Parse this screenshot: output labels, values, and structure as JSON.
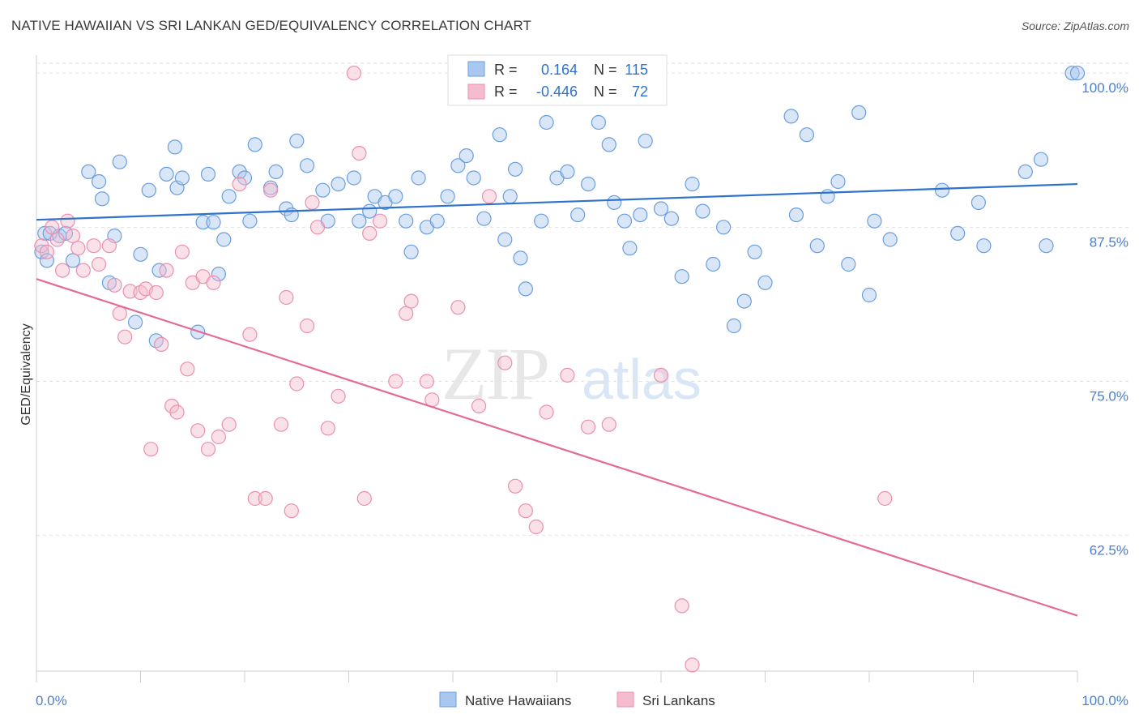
{
  "header": {
    "title": "NATIVE HAWAIIAN VS SRI LANKAN GED/EQUIVALENCY CORRELATION CHART",
    "source": "Source: ZipAtlas.com"
  },
  "watermark": {
    "zip": "ZIP",
    "atlas": "atlas"
  },
  "legend_top": {
    "rows": [
      {
        "r_label": "R =",
        "r_value": "0.164",
        "n_label": "N =",
        "n_value": "115"
      },
      {
        "r_label": "R =",
        "r_value": "-0.446",
        "n_label": "N =",
        "n_value": "72"
      }
    ]
  },
  "legend_bottom": {
    "items": [
      "Native Hawaiians",
      "Sri Lankans"
    ]
  },
  "colors": {
    "blue_fill": "#a9c8f0",
    "blue_stroke": "#6a9ee0",
    "blue_line": "#2f72cc",
    "pink_fill": "#f5bccd",
    "pink_stroke": "#eb8fb0",
    "pink_line": "#e36b98",
    "tick_text": "#4a7fd0",
    "grid": "#e3e3e3"
  },
  "chart_data": {
    "type": "scatter",
    "title": "NATIVE HAWAIIAN VS SRI LANKAN GED/EQUIVALENCY CORRELATION CHART",
    "xlabel": "",
    "ylabel": "GED/Equivalency",
    "xlim": [
      0,
      100
    ],
    "ylim": [
      51.5,
      100.8
    ],
    "x_tick_labels": [
      "0.0%",
      "100.0%"
    ],
    "y_ticks": [
      {
        "value": 100.0,
        "label": "100.0%"
      },
      {
        "value": 87.5,
        "label": "87.5%"
      },
      {
        "value": 75.0,
        "label": "75.0%"
      },
      {
        "value": 62.5,
        "label": "62.5%"
      }
    ],
    "grid": "horizontal dashed",
    "series": [
      {
        "name": "Native Hawaiians",
        "trend": {
          "x": [
            0,
            100
          ],
          "y": [
            88.1,
            91.0
          ]
        },
        "points": [
          [
            0.5,
            85.5
          ],
          [
            0.8,
            87.0
          ],
          [
            1.0,
            84.8
          ],
          [
            1.3,
            87.0
          ],
          [
            2.2,
            86.8
          ],
          [
            2.8,
            87.0
          ],
          [
            3.5,
            84.8
          ],
          [
            5.0,
            92.0
          ],
          [
            6.0,
            91.2
          ],
          [
            6.3,
            89.8
          ],
          [
            7.0,
            83.0
          ],
          [
            7.5,
            86.8
          ],
          [
            8.0,
            92.8
          ],
          [
            9.5,
            79.8
          ],
          [
            10.0,
            85.3
          ],
          [
            10.8,
            90.5
          ],
          [
            11.5,
            78.3
          ],
          [
            11.8,
            84.0
          ],
          [
            12.5,
            91.8
          ],
          [
            13.3,
            94.0
          ],
          [
            13.5,
            90.7
          ],
          [
            14.0,
            91.5
          ],
          [
            15.5,
            79.0
          ],
          [
            16.0,
            87.9
          ],
          [
            16.5,
            91.8
          ],
          [
            17.0,
            87.9
          ],
          [
            17.5,
            83.7
          ],
          [
            18.0,
            86.5
          ],
          [
            18.5,
            90.0
          ],
          [
            19.5,
            92.0
          ],
          [
            20.0,
            91.5
          ],
          [
            20.5,
            88.0
          ],
          [
            21.0,
            94.2
          ],
          [
            22.5,
            90.7
          ],
          [
            23.0,
            92.0
          ],
          [
            24.0,
            89.0
          ],
          [
            24.5,
            88.5
          ],
          [
            25.0,
            94.5
          ],
          [
            26.0,
            92.5
          ],
          [
            27.5,
            90.5
          ],
          [
            28.0,
            88.0
          ],
          [
            29.0,
            91.0
          ],
          [
            30.5,
            91.5
          ],
          [
            31.0,
            88.0
          ],
          [
            32.0,
            88.8
          ],
          [
            32.5,
            90.0
          ],
          [
            33.5,
            89.5
          ],
          [
            34.5,
            90.0
          ],
          [
            35.5,
            88.0
          ],
          [
            36.0,
            85.5
          ],
          [
            36.7,
            91.5
          ],
          [
            37.5,
            87.5
          ],
          [
            38.5,
            88.0
          ],
          [
            39.5,
            90.0
          ],
          [
            40.5,
            92.5
          ],
          [
            41.3,
            93.3
          ],
          [
            42.0,
            91.5
          ],
          [
            43.0,
            88.2
          ],
          [
            44.5,
            95.0
          ],
          [
            45.0,
            86.5
          ],
          [
            45.5,
            90.0
          ],
          [
            46.0,
            92.2
          ],
          [
            46.5,
            85.0
          ],
          [
            47.0,
            82.5
          ],
          [
            48.5,
            88.0
          ],
          [
            49.0,
            96.0
          ],
          [
            50.0,
            91.5
          ],
          [
            51.0,
            92.0
          ],
          [
            52.0,
            88.5
          ],
          [
            53.0,
            91.0
          ],
          [
            54.0,
            96.0
          ],
          [
            55.0,
            94.2
          ],
          [
            55.5,
            89.5
          ],
          [
            56.5,
            88.0
          ],
          [
            57.0,
            85.8
          ],
          [
            58.0,
            88.5
          ],
          [
            58.5,
            94.5
          ],
          [
            60.0,
            89.0
          ],
          [
            61.0,
            88.2
          ],
          [
            62.0,
            83.5
          ],
          [
            63.0,
            91.0
          ],
          [
            64.0,
            88.8
          ],
          [
            65.0,
            84.5
          ],
          [
            66.0,
            87.5
          ],
          [
            67.0,
            79.5
          ],
          [
            68.0,
            81.5
          ],
          [
            69.0,
            85.5
          ],
          [
            70.0,
            83.0
          ],
          [
            72.5,
            96.5
          ],
          [
            73.0,
            88.5
          ],
          [
            74.0,
            95.0
          ],
          [
            75.0,
            86.0
          ],
          [
            76.0,
            90.0
          ],
          [
            77.0,
            91.2
          ],
          [
            78.0,
            84.5
          ],
          [
            79.0,
            96.8
          ],
          [
            80.0,
            82.0
          ],
          [
            80.5,
            88.0
          ],
          [
            82.0,
            86.5
          ],
          [
            87.0,
            90.5
          ],
          [
            88.5,
            87.0
          ],
          [
            90.5,
            89.5
          ],
          [
            91.0,
            86.0
          ],
          [
            95.0,
            92.0
          ],
          [
            96.5,
            93.0
          ],
          [
            97.0,
            86.0
          ],
          [
            99.5,
            100.0
          ],
          [
            100.0,
            100.0
          ]
        ]
      },
      {
        "name": "Sri Lankans",
        "trend": {
          "x": [
            0,
            100
          ],
          "y": [
            83.3,
            56.0
          ]
        },
        "points": [
          [
            0.5,
            86.0
          ],
          [
            1.0,
            85.5
          ],
          [
            1.5,
            87.5
          ],
          [
            2.0,
            86.5
          ],
          [
            2.5,
            84.0
          ],
          [
            3.0,
            88.0
          ],
          [
            3.5,
            86.8
          ],
          [
            4.0,
            85.8
          ],
          [
            4.5,
            84.0
          ],
          [
            5.5,
            86.0
          ],
          [
            6.0,
            84.5
          ],
          [
            7.0,
            86.0
          ],
          [
            7.5,
            82.8
          ],
          [
            8.0,
            80.5
          ],
          [
            8.5,
            78.6
          ],
          [
            9.0,
            82.3
          ],
          [
            10.0,
            82.2
          ],
          [
            10.5,
            82.5
          ],
          [
            11.0,
            69.5
          ],
          [
            11.5,
            82.2
          ],
          [
            12.0,
            78.0
          ],
          [
            12.5,
            84.0
          ],
          [
            13.0,
            73.0
          ],
          [
            13.5,
            72.5
          ],
          [
            14.0,
            85.5
          ],
          [
            14.5,
            76.0
          ],
          [
            15.0,
            83.0
          ],
          [
            15.5,
            71.0
          ],
          [
            16.0,
            83.5
          ],
          [
            16.5,
            69.5
          ],
          [
            17.0,
            83.0
          ],
          [
            17.5,
            70.5
          ],
          [
            18.5,
            71.5
          ],
          [
            19.5,
            91.0
          ],
          [
            20.5,
            78.8
          ],
          [
            21.0,
            65.5
          ],
          [
            22.0,
            65.5
          ],
          [
            22.5,
            90.5
          ],
          [
            23.5,
            71.5
          ],
          [
            24.0,
            81.8
          ],
          [
            24.5,
            64.5
          ],
          [
            25.0,
            74.8
          ],
          [
            26.0,
            79.5
          ],
          [
            26.5,
            89.5
          ],
          [
            27.0,
            87.5
          ],
          [
            28.0,
            71.2
          ],
          [
            29.0,
            73.8
          ],
          [
            30.5,
            100.0
          ],
          [
            31.0,
            93.5
          ],
          [
            31.5,
            65.5
          ],
          [
            32.0,
            87.0
          ],
          [
            33.0,
            88.0
          ],
          [
            34.5,
            75.0
          ],
          [
            35.5,
            80.5
          ],
          [
            36.0,
            81.5
          ],
          [
            37.5,
            75.0
          ],
          [
            38.0,
            73.5
          ],
          [
            40.5,
            81.0
          ],
          [
            42.5,
            73.0
          ],
          [
            43.5,
            90.0
          ],
          [
            45.0,
            76.5
          ],
          [
            46.0,
            66.5
          ],
          [
            47.0,
            64.5
          ],
          [
            48.0,
            63.2
          ],
          [
            49.0,
            72.5
          ],
          [
            51.0,
            75.5
          ],
          [
            53.0,
            71.3
          ],
          [
            55.0,
            71.5
          ],
          [
            60.0,
            75.5
          ],
          [
            62.0,
            56.8
          ],
          [
            63.0,
            52.0
          ],
          [
            81.5,
            65.5
          ]
        ]
      }
    ]
  }
}
